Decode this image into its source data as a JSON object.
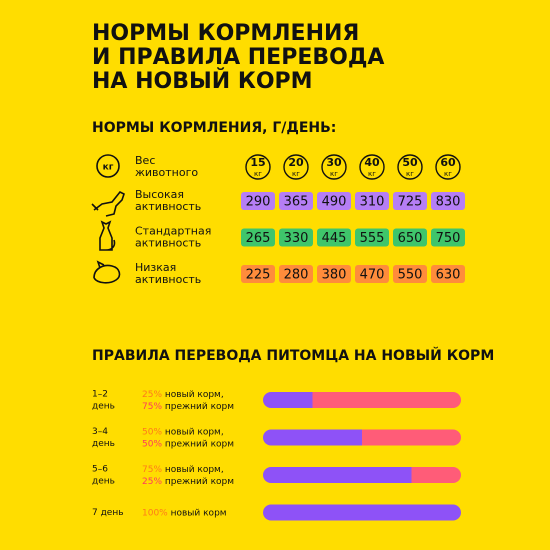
{
  "header": {
    "title_lines": [
      "НОРМЫ КОРМЛЕНИЯ",
      "И ПРАВИЛА ПЕРЕВОДА",
      "НА НОВЫЙ КОРМ"
    ]
  },
  "feeding": {
    "title": "НОРМЫ КОРМЛЕНИЯ, Г/ДЕНЬ:",
    "weight_icon": "кг",
    "weight_label": [
      "Вес",
      "животного"
    ],
    "unit": "кг",
    "weights": [
      "15",
      "20",
      "30",
      "40",
      "50",
      "60"
    ],
    "rows": [
      {
        "label": [
          "Высокая",
          "активность"
        ],
        "color": "#b57ef5",
        "values": [
          "290",
          "365",
          "490",
          "310",
          "725",
          "830"
        ]
      },
      {
        "label": [
          "Стандартная",
          "активность"
        ],
        "color": "#3fc56b",
        "values": [
          "265",
          "330",
          "445",
          "555",
          "650",
          "750"
        ]
      },
      {
        "label": [
          "Низкая",
          "активность"
        ],
        "color": "#ff8c3b",
        "values": [
          "225",
          "280",
          "380",
          "470",
          "550",
          "630"
        ]
      }
    ]
  },
  "transition": {
    "title": "ПРАВИЛА ПЕРЕВОДА ПИТОМЦА НА НОВЫЙ КОРМ",
    "new_color": "#8e52f7",
    "old_color": "#ff5c78",
    "rows": [
      {
        "day": [
          "1–2",
          "день"
        ],
        "new": {
          "value": 25,
          "label": "25%"
        },
        "new_text": "новый корм,",
        "old": {
          "value": 75,
          "label": "75%"
        },
        "old_text": "прежний корм"
      },
      {
        "day": [
          "3–4",
          "день"
        ],
        "new": {
          "value": 50,
          "label": "50%"
        },
        "new_text": "новый корм,",
        "old": {
          "value": 50,
          "label": "50%"
        },
        "old_text": "прежний корм"
      },
      {
        "day": [
          "5–6",
          "день"
        ],
        "new": {
          "value": 75,
          "label": "75%"
        },
        "new_text": "новый корм,",
        "old": {
          "value": 25,
          "label": "25%"
        },
        "old_text": "прежний корм"
      },
      {
        "day": [
          "7 день"
        ],
        "new": {
          "value": 100,
          "label": "100%"
        },
        "new_text": "новый корм"
      }
    ]
  }
}
